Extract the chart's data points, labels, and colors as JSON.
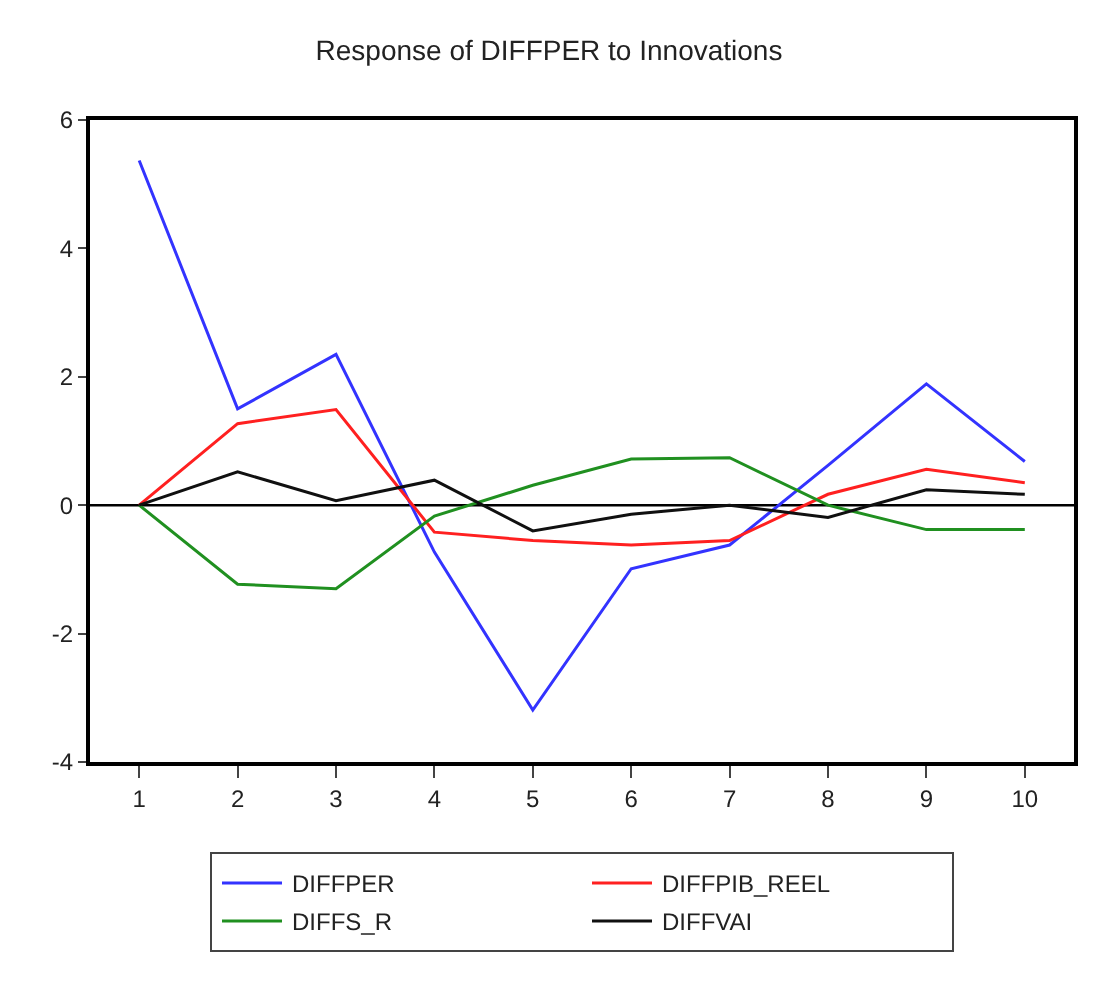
{
  "chart_data": {
    "type": "line",
    "title": "Response of DIFFPER to Innovations",
    "categories": [
      "1",
      "2",
      "3",
      "4",
      "5",
      "6",
      "7",
      "8",
      "9",
      "10"
    ],
    "series": [
      {
        "name": "DIFFPER",
        "color": "#3333ff",
        "values": [
          5.37,
          1.5,
          2.35,
          -0.73,
          -3.19,
          -0.99,
          -0.62,
          0.62,
          1.89,
          0.68
        ]
      },
      {
        "name": "DIFFPIB_REEL",
        "color": "#ff2020",
        "values": [
          0,
          1.27,
          1.49,
          -0.42,
          -0.55,
          -0.62,
          -0.55,
          0.17,
          0.56,
          0.35
        ]
      },
      {
        "name": "DIFFS_R",
        "color": "#209020",
        "values": [
          0,
          -1.23,
          -1.3,
          -0.17,
          0.31,
          0.72,
          0.74,
          0.0,
          -0.38,
          -0.38
        ]
      },
      {
        "name": "DIFFVAI",
        "color": "#101010",
        "values": [
          0,
          0.52,
          0.07,
          0.39,
          -0.4,
          -0.14,
          0.0,
          -0.19,
          0.24,
          0.17
        ]
      }
    ],
    "ylim": [
      -4,
      6
    ],
    "yticks": [
      -4,
      -2,
      0,
      2,
      4,
      6
    ],
    "ref_lines": [
      {
        "axis": "y",
        "value": 0,
        "color": "#000000"
      }
    ],
    "grid": false,
    "legend": "bottom",
    "marker": "none",
    "line_style": "solid"
  }
}
